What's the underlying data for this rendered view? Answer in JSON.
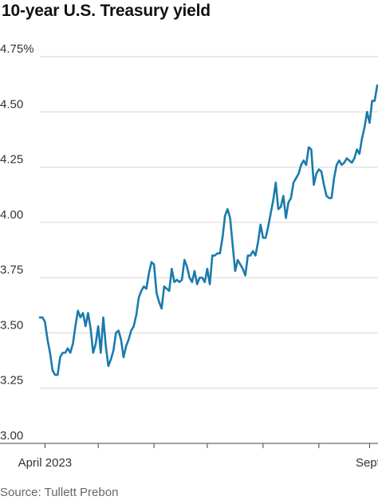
{
  "chart_data": {
    "type": "line",
    "title": "10-year U.S. Treasury yield",
    "source": "Source: Tullett Prebon",
    "ylim": [
      3.0,
      4.75
    ],
    "y_ticks": [
      {
        "value": 4.75,
        "label": "4.75%"
      },
      {
        "value": 4.5,
        "label": "4.50"
      },
      {
        "value": 4.25,
        "label": "4.25"
      },
      {
        "value": 4.0,
        "label": "4.00"
      },
      {
        "value": 3.75,
        "label": "3.75"
      },
      {
        "value": 3.5,
        "label": "3.50"
      },
      {
        "value": 3.25,
        "label": "3.25"
      },
      {
        "value": 3.0,
        "label": "3.00"
      }
    ],
    "x_ticks": [
      {
        "index": 2,
        "label": "April 2023"
      },
      {
        "index": 23,
        "label": ""
      },
      {
        "index": 45,
        "label": ""
      },
      {
        "index": 66,
        "label": ""
      },
      {
        "index": 88,
        "label": ""
      },
      {
        "index": 110,
        "label": ""
      },
      {
        "index": 130,
        "label": "Sept."
      }
    ],
    "grid": true,
    "line_color": "#1a7bac",
    "series": [
      {
        "values": [
          3.57,
          3.57,
          3.55,
          3.47,
          3.41,
          3.33,
          3.31,
          3.31,
          3.39,
          3.41,
          3.41,
          3.43,
          3.41,
          3.45,
          3.53,
          3.6,
          3.57,
          3.59,
          3.53,
          3.59,
          3.52,
          3.41,
          3.45,
          3.53,
          3.41,
          3.57,
          3.44,
          3.35,
          3.38,
          3.42,
          3.5,
          3.51,
          3.47,
          3.39,
          3.44,
          3.47,
          3.51,
          3.53,
          3.58,
          3.66,
          3.69,
          3.71,
          3.7,
          3.77,
          3.82,
          3.81,
          3.68,
          3.64,
          3.61,
          3.71,
          3.7,
          3.69,
          3.79,
          3.73,
          3.74,
          3.73,
          3.74,
          3.83,
          3.8,
          3.75,
          3.73,
          3.78,
          3.72,
          3.75,
          3.75,
          3.73,
          3.79,
          3.72,
          3.85,
          3.85,
          3.86,
          3.86,
          3.93,
          4.03,
          4.06,
          4.02,
          3.9,
          3.78,
          3.83,
          3.81,
          3.79,
          3.76,
          3.85,
          3.85,
          3.87,
          3.85,
          3.91,
          3.99,
          3.93,
          3.93,
          3.98,
          4.04,
          4.1,
          4.18,
          4.06,
          4.07,
          4.12,
          4.02,
          4.09,
          4.11,
          4.18,
          4.2,
          4.22,
          4.26,
          4.28,
          4.26,
          4.34,
          4.33,
          4.17,
          4.22,
          4.24,
          4.23,
          4.17,
          4.12,
          4.11,
          4.11,
          4.2,
          4.26,
          4.28,
          4.26,
          4.27,
          4.29,
          4.28,
          4.27,
          4.29,
          4.33,
          4.31,
          4.38,
          4.43,
          4.5,
          4.45,
          4.55,
          4.55,
          4.62
        ]
      }
    ]
  }
}
